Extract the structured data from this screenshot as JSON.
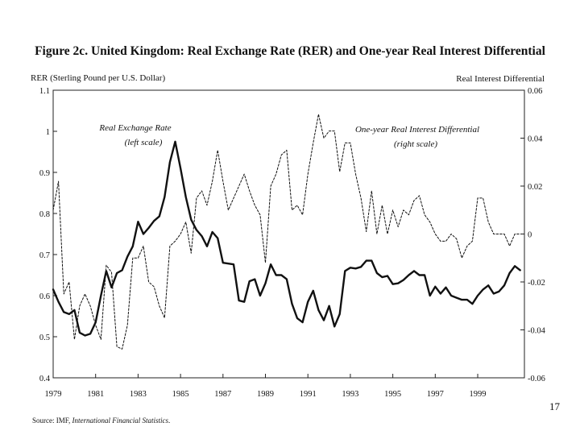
{
  "chart_data": {
    "type": "line",
    "title": "Figure 2c. United Kingdom: Real Exchange Rate (RER) and One-year Real Interest Differential",
    "y_left_label": "RER (Sterling Pound per U.S. Dollar)",
    "y_right_label": "Real Interest Differential",
    "y_left_lim": [
      0.4,
      1.1
    ],
    "y_right_lim": [
      -0.06,
      0.06
    ],
    "y_left_ticks": [
      {
        "value": 0.4,
        "label": "0.4"
      },
      {
        "value": 0.5,
        "label": "0.5"
      },
      {
        "value": 0.6,
        "label": "0.6"
      },
      {
        "value": 0.7,
        "label": "0.7"
      },
      {
        "value": 0.8,
        "label": "0.8"
      },
      {
        "value": 0.9,
        "label": "0.9"
      },
      {
        "value": 1.0,
        "label": "1"
      },
      {
        "value": 1.1,
        "label": "1.1"
      }
    ],
    "y_right_ticks": [
      {
        "value": -0.06,
        "label": "-0.06"
      },
      {
        "value": -0.04,
        "label": "-0.04"
      },
      {
        "value": -0.02,
        "label": "-0.02"
      },
      {
        "value": 0,
        "label": "0"
      },
      {
        "value": 0.02,
        "label": "0.02"
      },
      {
        "value": 0.04,
        "label": "0.04"
      },
      {
        "value": 0.06,
        "label": "0.06"
      }
    ],
    "x_lim": [
      1979,
      2001.2
    ],
    "x_ticks": [
      {
        "value": 1979,
        "label": "1979"
      },
      {
        "value": 1981,
        "label": "1981"
      },
      {
        "value": 1983,
        "label": "1983"
      },
      {
        "value": 1985,
        "label": "1985"
      },
      {
        "value": 1987,
        "label": "1987"
      },
      {
        "value": 1989,
        "label": "1989"
      },
      {
        "value": 1991,
        "label": "1991"
      },
      {
        "value": 1993,
        "label": "1993"
      },
      {
        "value": 1995,
        "label": "1995"
      },
      {
        "value": 1997,
        "label": "1997"
      },
      {
        "value": 1999,
        "label": "1999"
      }
    ],
    "annotations": [
      {
        "line1": "Real Exchange Rate",
        "line2": "(left scale)"
      },
      {
        "line1": "One-year Real Interest Differential",
        "line2": "(right scale)"
      }
    ],
    "series": [
      {
        "name": "Real Exchange Rate",
        "axis": "left",
        "style": "solid",
        "x": [
          1979.0,
          1979.25,
          1979.5,
          1979.75,
          1980.0,
          1980.25,
          1980.5,
          1980.75,
          1981.0,
          1981.25,
          1981.5,
          1981.75,
          1982.0,
          1982.25,
          1982.5,
          1982.75,
          1983.0,
          1983.25,
          1983.5,
          1983.75,
          1984.0,
          1984.25,
          1984.5,
          1984.75,
          1985.0,
          1985.25,
          1985.5,
          1985.75,
          1986.0,
          1986.25,
          1986.5,
          1986.75,
          1987.0,
          1987.25,
          1987.5,
          1987.75,
          1988.0,
          1988.25,
          1988.5,
          1988.75,
          1989.0,
          1989.25,
          1989.5,
          1989.75,
          1990.0,
          1990.25,
          1990.5,
          1990.75,
          1991.0,
          1991.25,
          1991.5,
          1991.75,
          1992.0,
          1992.25,
          1992.5,
          1992.75,
          1993.0,
          1993.25,
          1993.5,
          1993.75,
          1994.0,
          1994.25,
          1994.5,
          1994.75,
          1995.0,
          1995.25,
          1995.5,
          1995.75,
          1996.0,
          1996.25,
          1996.5,
          1996.75,
          1997.0,
          1997.25,
          1997.5,
          1997.75,
          1998.0,
          1998.25,
          1998.5,
          1998.75,
          1999.0,
          1999.25,
          1999.5,
          1999.75,
          2000.0,
          2000.25,
          2000.5,
          2000.75,
          2001.0
        ],
        "values": [
          0.615,
          0.585,
          0.56,
          0.555,
          0.565,
          0.51,
          0.503,
          0.507,
          0.535,
          0.6,
          0.66,
          0.62,
          0.655,
          0.662,
          0.695,
          0.72,
          0.78,
          0.75,
          0.765,
          0.782,
          0.793,
          0.84,
          0.925,
          0.975,
          0.91,
          0.84,
          0.785,
          0.76,
          0.745,
          0.72,
          0.755,
          0.74,
          0.68,
          0.678,
          0.676,
          0.588,
          0.585,
          0.635,
          0.64,
          0.6,
          0.63,
          0.676,
          0.65,
          0.65,
          0.64,
          0.58,
          0.545,
          0.535,
          0.585,
          0.612,
          0.565,
          0.54,
          0.575,
          0.525,
          0.555,
          0.66,
          0.668,
          0.666,
          0.67,
          0.685,
          0.685,
          0.655,
          0.645,
          0.648,
          0.628,
          0.63,
          0.638,
          0.65,
          0.66,
          0.65,
          0.65,
          0.6,
          0.622,
          0.605,
          0.62,
          0.6,
          0.595,
          0.59,
          0.59,
          0.58,
          0.6,
          0.615,
          0.625,
          0.605,
          0.61,
          0.625,
          0.655,
          0.672,
          0.662
        ]
      },
      {
        "name": "One-year Real Interest Differential",
        "axis": "right",
        "style": "dashed",
        "x": [
          1979.0,
          1979.25,
          1979.5,
          1979.75,
          1980.0,
          1980.25,
          1980.5,
          1980.75,
          1981.0,
          1981.25,
          1981.5,
          1981.75,
          1982.0,
          1982.25,
          1982.5,
          1982.75,
          1983.0,
          1983.25,
          1983.5,
          1983.75,
          1984.0,
          1984.25,
          1984.5,
          1984.75,
          1985.0,
          1985.25,
          1985.5,
          1985.75,
          1986.0,
          1986.25,
          1986.5,
          1986.75,
          1987.0,
          1987.25,
          1987.5,
          1987.75,
          1988.0,
          1988.25,
          1988.5,
          1988.75,
          1989.0,
          1989.25,
          1989.5,
          1989.75,
          1990.0,
          1990.25,
          1990.5,
          1990.75,
          1991.0,
          1991.25,
          1991.5,
          1991.75,
          1992.0,
          1992.25,
          1992.5,
          1992.75,
          1993.0,
          1993.25,
          1993.5,
          1993.75,
          1994.0,
          1994.25,
          1994.5,
          1994.75,
          1995.0,
          1995.25,
          1995.5,
          1995.75,
          1996.0,
          1996.25,
          1996.5,
          1996.75,
          1997.0,
          1997.25,
          1997.5,
          1997.75,
          1998.0,
          1998.25,
          1998.5,
          1998.75,
          1999.0,
          1999.25,
          1999.5,
          1999.75,
          2000.0,
          2000.25,
          2000.5,
          2000.75,
          2001.0
        ],
        "values": [
          0.01,
          0.022,
          -0.025,
          -0.02,
          -0.044,
          -0.03,
          -0.025,
          -0.03,
          -0.038,
          -0.044,
          -0.013,
          -0.016,
          -0.047,
          -0.048,
          -0.038,
          -0.01,
          -0.01,
          -0.005,
          -0.02,
          -0.022,
          -0.03,
          -0.035,
          -0.005,
          -0.003,
          0.0,
          0.005,
          -0.008,
          0.015,
          0.018,
          0.012,
          0.022,
          0.035,
          0.022,
          0.01,
          0.015,
          0.02,
          0.025,
          0.018,
          0.012,
          0.008,
          -0.012,
          0.02,
          0.025,
          0.033,
          0.035,
          0.01,
          0.012,
          0.008,
          0.025,
          0.038,
          0.05,
          0.04,
          0.043,
          0.043,
          0.026,
          0.038,
          0.038,
          0.025,
          0.015,
          0.001,
          0.018,
          0.0,
          0.012,
          0.0,
          0.01,
          0.003,
          0.01,
          0.008,
          0.014,
          0.016,
          0.008,
          0.005,
          0.0,
          -0.003,
          -0.003,
          0.0,
          -0.002,
          -0.01,
          -0.005,
          -0.003,
          0.015,
          0.015,
          0.005,
          0.0,
          0.0,
          0.0,
          -0.005,
          0.0,
          0.0
        ]
      }
    ]
  },
  "footer": {
    "source_prefix": "Source: IMF, ",
    "source_publication": "International Financial Statistics",
    "source_suffix": ".",
    "slide_number": "17"
  }
}
